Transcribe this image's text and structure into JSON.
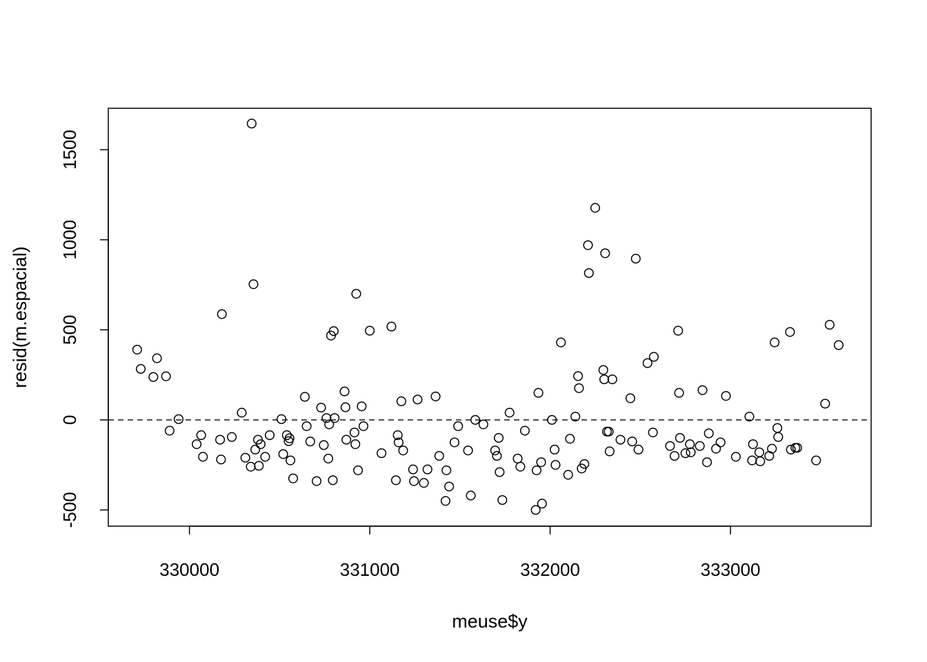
{
  "chart_data": {
    "type": "scatter",
    "title": "",
    "xlabel": "meuse$y",
    "ylabel": "resid(m.espacial)",
    "xlim": [
      329550,
      333780
    ],
    "ylim": [
      -590,
      1730
    ],
    "x_ticks": [
      330000,
      331000,
      332000,
      333000
    ],
    "x_tick_labels": [
      "330000",
      "331000",
      "332000",
      "333000"
    ],
    "y_ticks": [
      -500,
      0,
      500,
      1000,
      1500
    ],
    "y_tick_labels": [
      "-500",
      "0",
      "500",
      "1000",
      "1500"
    ],
    "grid": false,
    "legend": "none",
    "reference_line": {
      "y": 0,
      "style": "dashed"
    },
    "marker": "open-circle",
    "points": [
      [
        329710,
        390
      ],
      [
        329730,
        283
      ],
      [
        329800,
        238
      ],
      [
        329820,
        342
      ],
      [
        329870,
        242
      ],
      [
        329890,
        -60
      ],
      [
        329940,
        4
      ],
      [
        330040,
        -135
      ],
      [
        330065,
        -85
      ],
      [
        330075,
        -205
      ],
      [
        330170,
        -110
      ],
      [
        330175,
        -220
      ],
      [
        330180,
        587
      ],
      [
        330235,
        -95
      ],
      [
        330290,
        40
      ],
      [
        330310,
        -210
      ],
      [
        330340,
        -260
      ],
      [
        330345,
        1645
      ],
      [
        330355,
        753
      ],
      [
        330365,
        -165
      ],
      [
        330380,
        -110
      ],
      [
        330385,
        -255
      ],
      [
        330395,
        -135
      ],
      [
        330420,
        -205
      ],
      [
        330445,
        -85
      ],
      [
        330510,
        4
      ],
      [
        330520,
        -190
      ],
      [
        330540,
        -85
      ],
      [
        330550,
        -118
      ],
      [
        330555,
        -102
      ],
      [
        330560,
        -225
      ],
      [
        330575,
        -325
      ],
      [
        330640,
        128
      ],
      [
        330650,
        -35
      ],
      [
        330670,
        -120
      ],
      [
        330705,
        -340
      ],
      [
        330730,
        68
      ],
      [
        330745,
        -140
      ],
      [
        330760,
        10
      ],
      [
        330770,
        -215
      ],
      [
        330775,
        -25
      ],
      [
        330785,
        468
      ],
      [
        330795,
        -335
      ],
      [
        330800,
        493
      ],
      [
        330805,
        10
      ],
      [
        330860,
        158
      ],
      [
        330865,
        70
      ],
      [
        330870,
        -110
      ],
      [
        330915,
        -70
      ],
      [
        330920,
        -135
      ],
      [
        330925,
        700
      ],
      [
        330935,
        -280
      ],
      [
        330955,
        75
      ],
      [
        330965,
        -35
      ],
      [
        331000,
        495
      ],
      [
        331065,
        -185
      ],
      [
        331120,
        518
      ],
      [
        331145,
        -335
      ],
      [
        331155,
        -85
      ],
      [
        331160,
        -125
      ],
      [
        331175,
        103
      ],
      [
        331185,
        -170
      ],
      [
        331240,
        -275
      ],
      [
        331245,
        -340
      ],
      [
        331265,
        113
      ],
      [
        331300,
        -350
      ],
      [
        331320,
        -275
      ],
      [
        331365,
        130
      ],
      [
        331385,
        -200
      ],
      [
        331420,
        -450
      ],
      [
        331425,
        -280
      ],
      [
        331440,
        -370
      ],
      [
        331470,
        -125
      ],
      [
        331490,
        -35
      ],
      [
        331545,
        -170
      ],
      [
        331560,
        -420
      ],
      [
        331585,
        0
      ],
      [
        331630,
        -25
      ],
      [
        331695,
        -170
      ],
      [
        331705,
        -200
      ],
      [
        331715,
        -100
      ],
      [
        331720,
        -290
      ],
      [
        331735,
        -445
      ],
      [
        331775,
        40
      ],
      [
        331820,
        -215
      ],
      [
        331835,
        -260
      ],
      [
        331860,
        -60
      ],
      [
        331920,
        -500
      ],
      [
        331925,
        -280
      ],
      [
        331935,
        150
      ],
      [
        331950,
        -235
      ],
      [
        331955,
        -465
      ],
      [
        332010,
        0
      ],
      [
        332025,
        -165
      ],
      [
        332030,
        -250
      ],
      [
        332060,
        430
      ],
      [
        332100,
        -305
      ],
      [
        332110,
        -105
      ],
      [
        332140,
        18
      ],
      [
        332155,
        243
      ],
      [
        332160,
        176
      ],
      [
        332175,
        -270
      ],
      [
        332190,
        -245
      ],
      [
        332210,
        970
      ],
      [
        332215,
        815
      ],
      [
        332250,
        1177
      ],
      [
        332295,
        277
      ],
      [
        332300,
        225
      ],
      [
        332305,
        925
      ],
      [
        332315,
        -65
      ],
      [
        332325,
        -65
      ],
      [
        332330,
        -175
      ],
      [
        332345,
        225
      ],
      [
        332390,
        -110
      ],
      [
        332445,
        120
      ],
      [
        332455,
        -120
      ],
      [
        332475,
        895
      ],
      [
        332490,
        -165
      ],
      [
        332540,
        315
      ],
      [
        332570,
        -70
      ],
      [
        332575,
        350
      ],
      [
        332665,
        -145
      ],
      [
        332690,
        -200
      ],
      [
        332710,
        495
      ],
      [
        332715,
        150
      ],
      [
        332720,
        -100
      ],
      [
        332750,
        -185
      ],
      [
        332775,
        -135
      ],
      [
        332780,
        -180
      ],
      [
        332830,
        -145
      ],
      [
        332845,
        165
      ],
      [
        332870,
        -235
      ],
      [
        332880,
        -75
      ],
      [
        332920,
        -160
      ],
      [
        332945,
        -125
      ],
      [
        332975,
        133
      ],
      [
        333030,
        -205
      ],
      [
        333105,
        18
      ],
      [
        333120,
        -225
      ],
      [
        333125,
        -135
      ],
      [
        333160,
        -180
      ],
      [
        333165,
        -230
      ],
      [
        333215,
        -200
      ],
      [
        333230,
        -160
      ],
      [
        333245,
        430
      ],
      [
        333260,
        -45
      ],
      [
        333265,
        -95
      ],
      [
        333330,
        488
      ],
      [
        333335,
        -165
      ],
      [
        333360,
        -155
      ],
      [
        333370,
        -155
      ],
      [
        333475,
        -225
      ],
      [
        333525,
        90
      ],
      [
        333550,
        528
      ],
      [
        333600,
        415
      ]
    ]
  }
}
